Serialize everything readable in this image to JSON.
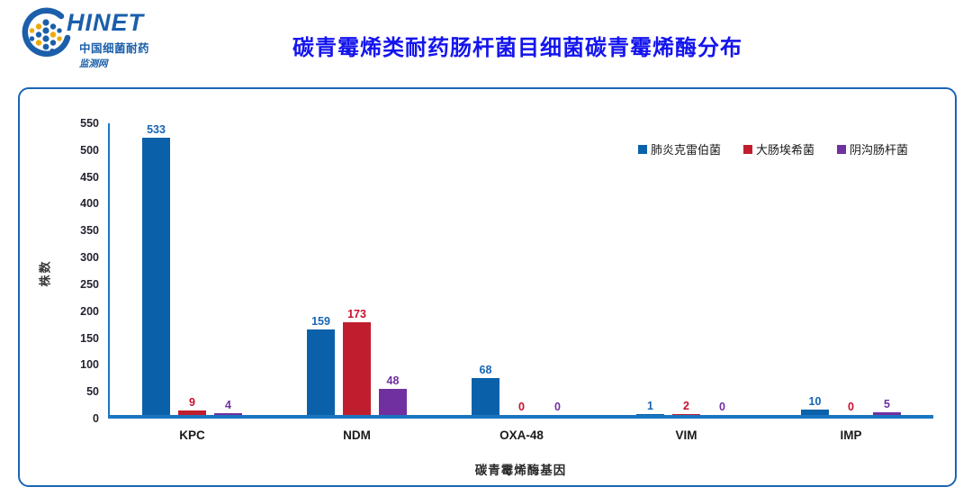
{
  "logo": {
    "brand": "HINET",
    "subtitle1": "中国细菌耐药",
    "subtitle2": "监测网"
  },
  "header": {
    "title": "碳青霉烯类耐药肠杆菌目细菌碳青霉烯酶分布"
  },
  "chart_data": {
    "type": "bar",
    "title": "碳青霉烯类耐药肠杆菌目细菌碳青霉烯酶分布",
    "categories": [
      "KPC",
      "NDM",
      "OXA-48",
      "VIM",
      "IMP"
    ],
    "series": [
      {
        "name": "肺炎克雷伯菌",
        "color": "#0a61a9",
        "label_color": "#1565b4",
        "values": [
          533,
          159,
          68,
          1,
          10
        ]
      },
      {
        "name": "大肠埃希菌",
        "color": "#c01e2e",
        "label_color": "#c8102e",
        "values": [
          9,
          173,
          0,
          2,
          0
        ]
      },
      {
        "name": "阴沟肠杆菌",
        "color": "#7030a0",
        "label_color": "#7030a0",
        "values": [
          4,
          48,
          0,
          0,
          5
        ]
      }
    ],
    "xlabel": "碳青霉烯酶基因",
    "ylabel": "株数",
    "ylim": [
      0,
      550
    ],
    "ytick_step": 50,
    "grid": false,
    "legend_position": "top-right"
  },
  "colors": {
    "title_blue": "#1414ee",
    "axis_blue": "#1b75c0",
    "panel_border_blue": "#1c64b6",
    "logo_blue": "#1b5faa",
    "logo_gold": "#eda909",
    "tick_label": "#242430"
  }
}
